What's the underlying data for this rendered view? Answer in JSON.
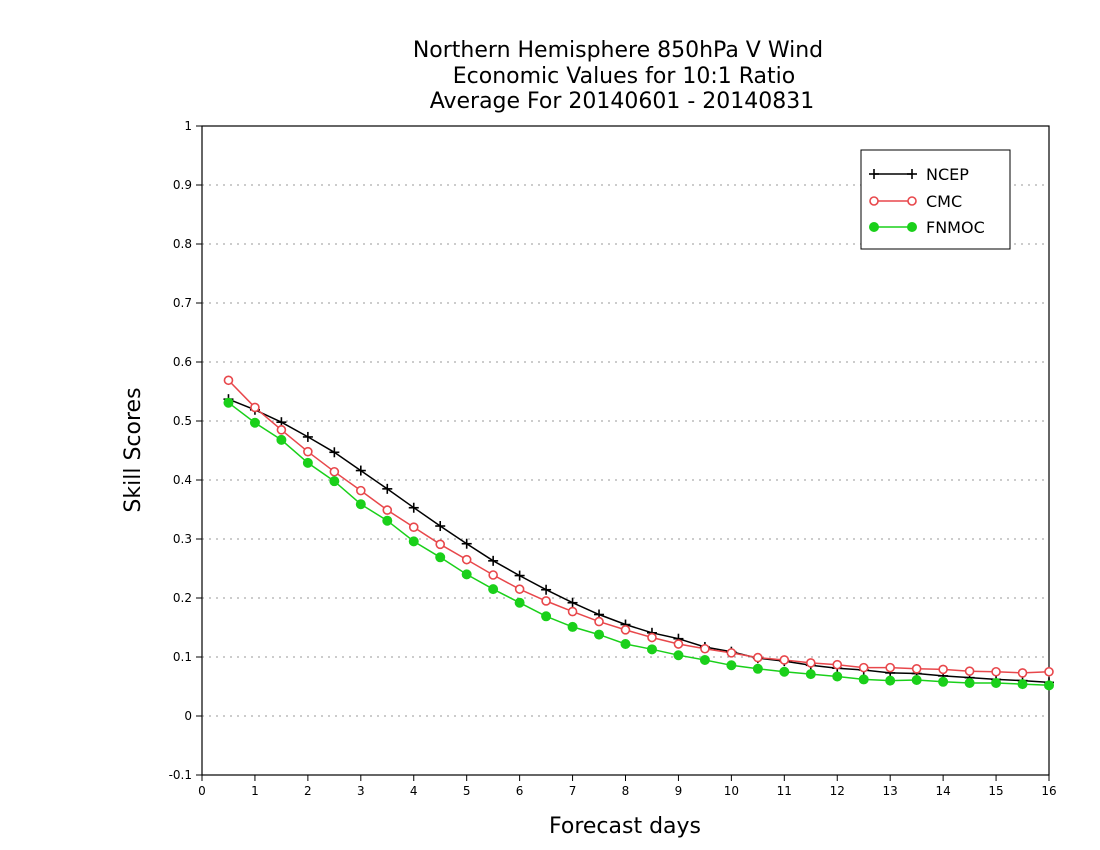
{
  "chart_data": {
    "type": "line",
    "title_lines": [
      "Northern Hemisphere 850hPa V Wind",
      "Economic Values for 10:1 Ratio",
      "Average For 20140601 - 20140831"
    ],
    "xlabel": "Forecast days",
    "ylabel": "Skill Scores",
    "xlim": [
      0,
      16
    ],
    "ylim": [
      -0.1,
      1
    ],
    "xticks": [
      0,
      1,
      2,
      3,
      4,
      5,
      6,
      7,
      8,
      9,
      10,
      11,
      12,
      13,
      14,
      15,
      16
    ],
    "yticks": [
      -0.1,
      0,
      0.1,
      0.2,
      0.3,
      0.4,
      0.5,
      0.6,
      0.7,
      0.8,
      0.9,
      1
    ],
    "ytick_labels": [
      "-0.1",
      "0",
      "0.1",
      "0.2",
      "0.3",
      "0.4",
      "0.5",
      "0.6",
      "0.7",
      "0.8",
      "0.9",
      "1"
    ],
    "grid": "y-dotted",
    "legend_position": "top-right",
    "x": [
      0.5,
      1,
      1.5,
      2,
      2.5,
      3,
      3.5,
      4,
      4.5,
      5,
      5.5,
      6,
      6.5,
      7,
      7.5,
      8,
      8.5,
      9,
      9.5,
      10,
      10.5,
      11,
      11.5,
      12,
      12.5,
      13,
      13.5,
      14,
      14.5,
      15,
      15.5,
      16
    ],
    "series": [
      {
        "name": "NCEP",
        "color": "#000000",
        "marker": "plus",
        "values": [
          0.537,
          0.519,
          0.498,
          0.473,
          0.447,
          0.416,
          0.385,
          0.353,
          0.322,
          0.292,
          0.263,
          0.238,
          0.214,
          0.192,
          0.172,
          0.155,
          0.141,
          0.131,
          0.117,
          0.109,
          0.098,
          0.093,
          0.086,
          0.081,
          0.078,
          0.073,
          0.072,
          0.068,
          0.065,
          0.062,
          0.06,
          0.057
        ]
      },
      {
        "name": "CMC",
        "color": "#e8474b",
        "marker": "open-circle",
        "values": [
          0.569,
          0.523,
          0.485,
          0.448,
          0.414,
          0.382,
          0.349,
          0.32,
          0.291,
          0.265,
          0.239,
          0.215,
          0.195,
          0.177,
          0.16,
          0.146,
          0.133,
          0.122,
          0.114,
          0.107,
          0.099,
          0.095,
          0.09,
          0.087,
          0.082,
          0.082,
          0.08,
          0.079,
          0.076,
          0.075,
          0.073,
          0.075
        ]
      },
      {
        "name": "FNMOC",
        "color": "#1ad01a",
        "marker": "filled-circle",
        "values": [
          0.531,
          0.497,
          0.468,
          0.429,
          0.398,
          0.359,
          0.331,
          0.296,
          0.269,
          0.24,
          0.215,
          0.192,
          0.169,
          0.151,
          0.138,
          0.122,
          0.113,
          0.103,
          0.095,
          0.086,
          0.08,
          0.075,
          0.071,
          0.067,
          0.062,
          0.06,
          0.061,
          0.058,
          0.056,
          0.056,
          0.054,
          0.052
        ]
      }
    ]
  }
}
